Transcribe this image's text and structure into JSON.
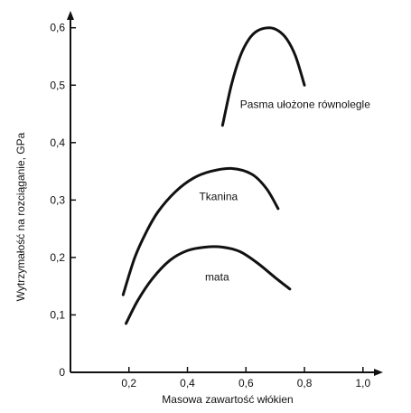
{
  "chart_data": {
    "type": "line",
    "title": "",
    "xlabel": "Masowa zawartość włókien",
    "ylabel": "Wytrzymałość na rozciąganie, GPa",
    "xlim": [
      0,
      1.05
    ],
    "ylim": [
      0,
      0.62
    ],
    "x_ticks": [
      {
        "value": 0.2,
        "label": "0,2"
      },
      {
        "value": 0.4,
        "label": "0,4"
      },
      {
        "value": 0.6,
        "label": "0,6"
      },
      {
        "value": 0.8,
        "label": "0,8"
      },
      {
        "value": 1.0,
        "label": "1,0"
      }
    ],
    "y_ticks": [
      {
        "value": 0,
        "label": "0"
      },
      {
        "value": 0.1,
        "label": "0,1"
      },
      {
        "value": 0.2,
        "label": "0,2"
      },
      {
        "value": 0.3,
        "label": "0,3"
      },
      {
        "value": 0.4,
        "label": "0,4"
      },
      {
        "value": 0.5,
        "label": "0,5"
      },
      {
        "value": 0.6,
        "label": "0,6"
      }
    ],
    "grid": false,
    "legend": "none",
    "series": [
      {
        "label": "Pasma ułożone równolegle",
        "label_at": {
          "x": 0.58,
          "y": 0.46
        },
        "points": [
          [
            0.52,
            0.43
          ],
          [
            0.55,
            0.5
          ],
          [
            0.58,
            0.55
          ],
          [
            0.61,
            0.58
          ],
          [
            0.64,
            0.595
          ],
          [
            0.68,
            0.6
          ],
          [
            0.71,
            0.595
          ],
          [
            0.74,
            0.58
          ],
          [
            0.77,
            0.55
          ],
          [
            0.8,
            0.5
          ]
        ]
      },
      {
        "label": "Tkanina",
        "label_at": {
          "x": 0.44,
          "y": 0.3
        },
        "points": [
          [
            0.18,
            0.135
          ],
          [
            0.22,
            0.2
          ],
          [
            0.26,
            0.245
          ],
          [
            0.3,
            0.28
          ],
          [
            0.36,
            0.315
          ],
          [
            0.42,
            0.338
          ],
          [
            0.48,
            0.35
          ],
          [
            0.55,
            0.355
          ],
          [
            0.62,
            0.345
          ],
          [
            0.67,
            0.32
          ],
          [
            0.71,
            0.285
          ]
        ]
      },
      {
        "label": "mata",
        "label_at": {
          "x": 0.46,
          "y": 0.16
        },
        "points": [
          [
            0.19,
            0.085
          ],
          [
            0.23,
            0.125
          ],
          [
            0.28,
            0.163
          ],
          [
            0.34,
            0.195
          ],
          [
            0.4,
            0.212
          ],
          [
            0.46,
            0.218
          ],
          [
            0.52,
            0.218
          ],
          [
            0.58,
            0.21
          ],
          [
            0.64,
            0.19
          ],
          [
            0.7,
            0.165
          ],
          [
            0.75,
            0.145
          ]
        ]
      }
    ]
  }
}
